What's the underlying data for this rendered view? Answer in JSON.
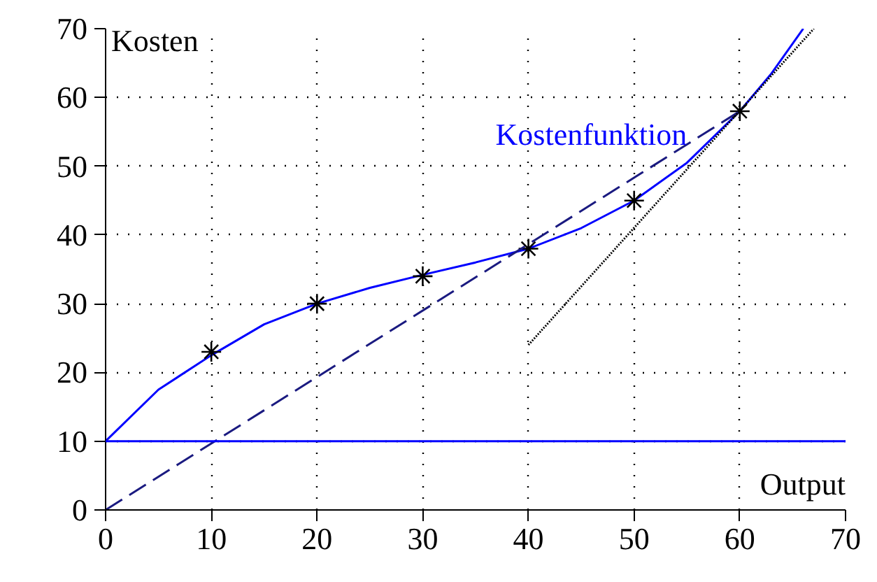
{
  "chart_data": {
    "type": "line",
    "xlabel": "Output",
    "ylabel": "Kosten",
    "xlim": [
      0,
      70
    ],
    "ylim": [
      0,
      70
    ],
    "xticks": [
      0,
      10,
      20,
      30,
      40,
      50,
      60,
      70
    ],
    "yticks": [
      0,
      10,
      20,
      30,
      40,
      50,
      60,
      70
    ],
    "grid": true,
    "series": [
      {
        "name": "Kostenfunktion",
        "color": "#0000ff",
        "x": [
          0,
          5,
          10,
          15,
          20,
          25,
          30,
          35,
          40,
          45,
          50,
          55,
          60,
          63,
          66
        ],
        "values": [
          10,
          17.5,
          22.5,
          27,
          30,
          32.3,
          34.2,
          36,
          38,
          41,
          45,
          50.5,
          58,
          63.5,
          70
        ]
      },
      {
        "type": "scatter",
        "marker": "cross",
        "color": "#000000",
        "x": [
          10,
          20,
          30,
          40,
          50,
          60
        ],
        "values": [
          23,
          30,
          34,
          38,
          45,
          58
        ]
      },
      {
        "type": "line",
        "line_style": "dashed",
        "color": "#1a1a80",
        "x": [
          0,
          60
        ],
        "values": [
          0,
          58
        ]
      },
      {
        "type": "line",
        "line_style": "dotted",
        "color": "#000000",
        "x": [
          40,
          67
        ],
        "values": [
          24,
          70
        ]
      }
    ],
    "ref_lines": [
      {
        "axis": "y",
        "value": 10,
        "color": "#0000ff"
      }
    ]
  }
}
